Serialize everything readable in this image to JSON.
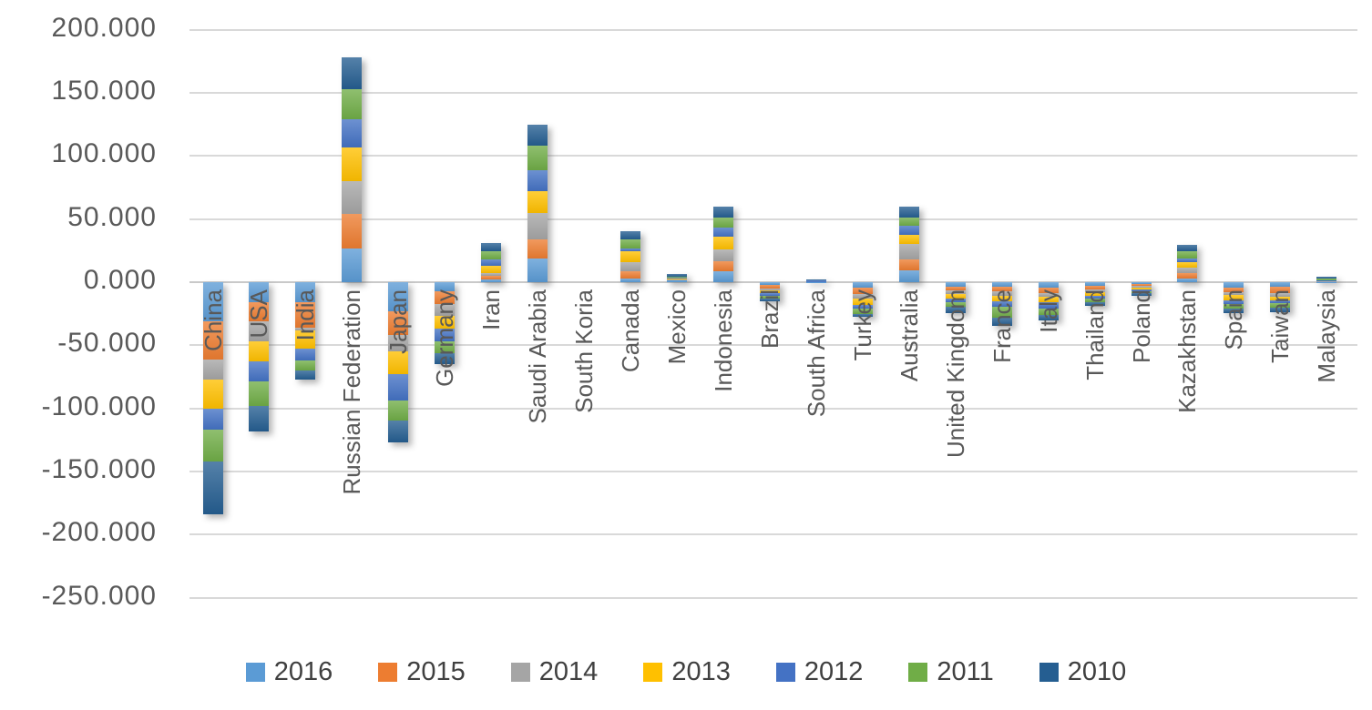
{
  "chart_data": {
    "type": "bar",
    "stacked": true,
    "title": "",
    "xlabel": "",
    "ylabel": "",
    "grid": true,
    "legend_position": "bottom",
    "ylim": [
      -250,
      200
    ],
    "y_ticks": [
      {
        "label": "200.000",
        "value": 200
      },
      {
        "label": "150.000",
        "value": 150
      },
      {
        "label": "100.000",
        "value": 100
      },
      {
        "label": "50.000",
        "value": 50
      },
      {
        "label": "0.000",
        "value": 0
      },
      {
        "label": "-50.000",
        "value": -50
      },
      {
        "label": "-100.000",
        "value": -100
      },
      {
        "label": "-150.000",
        "value": -150
      },
      {
        "label": "-200.000",
        "value": -200
      },
      {
        "label": "-250.000",
        "value": -250
      }
    ],
    "categories": [
      "China",
      "USA",
      "India",
      "Russian Federation",
      "Japan",
      "Germany",
      "Iran",
      "Saudi Arabia",
      "South Koria",
      "Canada",
      "Mexico",
      "Indonesia",
      "Brazil",
      "South Africa",
      "Turkey",
      "Australia",
      "United Kingdom",
      "France",
      "Italy",
      "Thailand",
      "Poland",
      "Kazakhstan",
      "Spain",
      "Taiwan",
      "Malaysia"
    ],
    "series": [
      {
        "name": "2016",
        "color": "#5B9BD5",
        "values": [
          -31,
          -16,
          -16,
          27,
          -23,
          -7,
          2,
          19,
          0,
          3,
          2,
          8.5,
          -2.5,
          0.3,
          -4.3,
          9.4,
          -3.6,
          -3.6,
          -4.3,
          -2.9,
          -1.2,
          2.9,
          -4.3,
          -3.6,
          0.3
        ]
      },
      {
        "name": "2015",
        "color": "#ED7D31",
        "values": [
          -30,
          -15,
          -20,
          27,
          -19,
          -10,
          3,
          15,
          0,
          5.8,
          0.3,
          8,
          -2.2,
          0,
          -5,
          8.6,
          -2.9,
          -3.6,
          -4.3,
          -2.9,
          -2,
          4.3,
          -3.6,
          -5,
          0.1
        ]
      },
      {
        "name": "2014",
        "color": "#A5A5A5",
        "values": [
          -16,
          -16,
          -2,
          26,
          -13,
          -10,
          2,
          21,
          0,
          7.2,
          0.2,
          9.5,
          -1.6,
          0,
          -3.6,
          12.2,
          -2.9,
          -3.6,
          -2.9,
          -2.2,
          -1.3,
          4.3,
          -2.2,
          -2.9,
          0.1
        ]
      },
      {
        "name": "2013",
        "color": "#FFC000",
        "values": [
          -23,
          -16,
          -15,
          27,
          -18,
          -10,
          5.8,
          17,
          0,
          8.6,
          0.3,
          10,
          -2.2,
          0,
          -5,
          7.2,
          -3.6,
          -4.3,
          -4.3,
          -2.9,
          -1.5,
          4.3,
          -4.3,
          -2.9,
          0.7
        ]
      },
      {
        "name": "2012",
        "color": "#4472C4",
        "values": [
          -17,
          -16,
          -9,
          22,
          -21,
          -10,
          5,
          17,
          0,
          1.8,
          0.5,
          7,
          -2.2,
          0.8,
          -2.9,
          7.2,
          -2.9,
          -4.3,
          -5,
          -2.2,
          -1.5,
          2.9,
          -2.9,
          -2.2,
          0.4
        ]
      },
      {
        "name": "2011",
        "color": "#70AD47",
        "values": [
          -25,
          -19,
          -8,
          24,
          -16,
          -9,
          7,
          19,
          0,
          7.5,
          1,
          8.5,
          -2.1,
          0,
          -4.3,
          6.5,
          -3.6,
          -8.6,
          -5,
          -2.5,
          -1.5,
          5.8,
          -3.6,
          -3.6,
          1.4
        ]
      },
      {
        "name": "2010",
        "color": "#255E91",
        "values": [
          -42,
          -20,
          -7,
          25,
          -17,
          -9,
          6.5,
          17,
          0,
          6.5,
          2,
          8.5,
          -2.2,
          1.4,
          -2.2,
          8.6,
          -5,
          -6.5,
          -4.3,
          -2.9,
          -2,
          5,
          -3.6,
          -3.6,
          1.6
        ]
      }
    ]
  }
}
